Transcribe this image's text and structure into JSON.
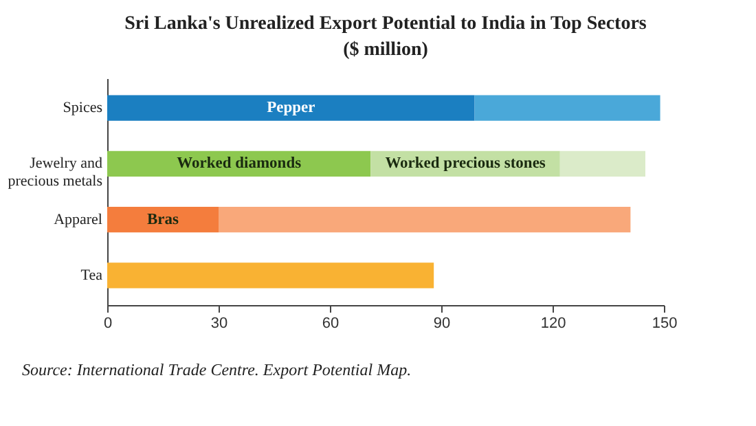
{
  "chart_data": {
    "type": "bar",
    "orientation": "horizontal",
    "stacked": true,
    "title": "Sri Lanka's Unrealized Export Potential to India in Top Sectors\n($ million)",
    "categories": [
      "Spices",
      "Jewelry and precious metals",
      "Apparel",
      "Tea"
    ],
    "series": [
      {
        "values": [
          99,
          71,
          30,
          88
        ],
        "colors": [
          "#1b7fc1",
          "#8dc84f",
          "#f47d3d",
          "#f9b233"
        ],
        "value_labels": [
          "Pepper",
          "Worked diamonds",
          "Bras",
          null
        ]
      },
      {
        "values": [
          50,
          51,
          111,
          null
        ],
        "colors": [
          "#4aa8d9",
          "#c3e0a4",
          "#f9a87a",
          null
        ],
        "value_labels": [
          null,
          "Worked precious stones",
          null,
          null
        ]
      },
      {
        "values": [
          null,
          23,
          null,
          null
        ],
        "colors": [
          null,
          "#dbebc9",
          null,
          null
        ]
      }
    ],
    "xlim": [
      0,
      150
    ],
    "xticks": [
      0,
      30,
      60,
      90,
      120,
      150
    ],
    "grid": false,
    "annotations": [
      "Source: International Trade Centre. Export Potential Map."
    ]
  }
}
